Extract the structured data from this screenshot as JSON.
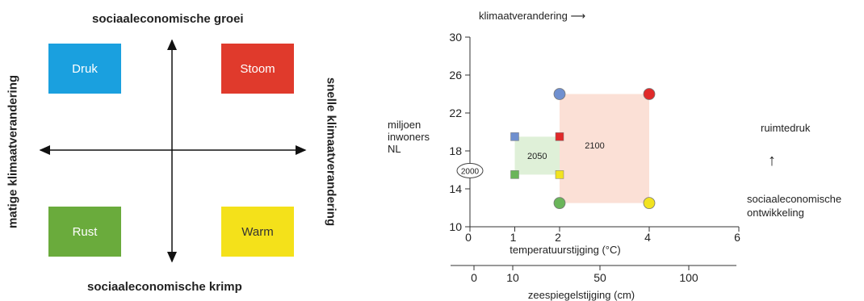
{
  "quadrant": {
    "top_label": "sociaaleconomische groei",
    "bottom_label": "sociaaleconomische krimp",
    "left_label": "matige klimaatverandering",
    "right_label": "snelle klimaatverandering",
    "boxes": {
      "druk": {
        "label": "Druk",
        "color": "#1aa0df"
      },
      "stoom": {
        "label": "Stoom",
        "color": "#e03a2c"
      },
      "rust": {
        "label": "Rust",
        "color": "#6aab3c"
      },
      "warm": {
        "label": "Warm",
        "color": "#f4e11a"
      }
    }
  },
  "chart_data": {
    "type": "scatter",
    "x_top_label": "klimaatverandering",
    "xlabel": "temperatuurstijging (°C)",
    "xlabel2": "zeespiegelstijging (cm)",
    "ylabel": [
      "miljoen",
      "inwoners",
      "NL"
    ],
    "right_top_label": "ruimtedruk",
    "right_bottom_label": [
      "sociaaleconomische",
      "ontwikkeling"
    ],
    "xlim": [
      0,
      6
    ],
    "ylim": [
      10,
      30
    ],
    "x_ticks": [
      "0",
      "1",
      "2",
      "4",
      "6"
    ],
    "y_ticks": [
      "10",
      "14",
      "18",
      "22",
      "26",
      "30"
    ],
    "x2_ticks": [
      "0",
      "10",
      "50",
      "100"
    ],
    "start_point": {
      "label": "2000",
      "x": 0,
      "y": 16
    },
    "regions": [
      {
        "label": "2050",
        "x": [
          1,
          2
        ],
        "y": [
          15.5,
          19.5
        ],
        "color": "#dff0d8"
      },
      {
        "label": "2100",
        "x": [
          2,
          4
        ],
        "y": [
          12.5,
          24
        ],
        "color": "#fbe0d6"
      }
    ],
    "points_2050": [
      {
        "x": 1,
        "y": 19.5,
        "color": "#6f8fcf"
      },
      {
        "x": 2,
        "y": 19.5,
        "color": "#e02a2a"
      },
      {
        "x": 1,
        "y": 15.5,
        "color": "#6ab55a"
      },
      {
        "x": 2,
        "y": 15.5,
        "color": "#f2e320"
      }
    ],
    "points_2100": [
      {
        "x": 2,
        "y": 24,
        "color": "#6f8fcf"
      },
      {
        "x": 4,
        "y": 24,
        "color": "#e02a2a"
      },
      {
        "x": 2,
        "y": 12.5,
        "color": "#6ab55a"
      },
      {
        "x": 4,
        "y": 12.5,
        "color": "#f2e320"
      }
    ]
  }
}
